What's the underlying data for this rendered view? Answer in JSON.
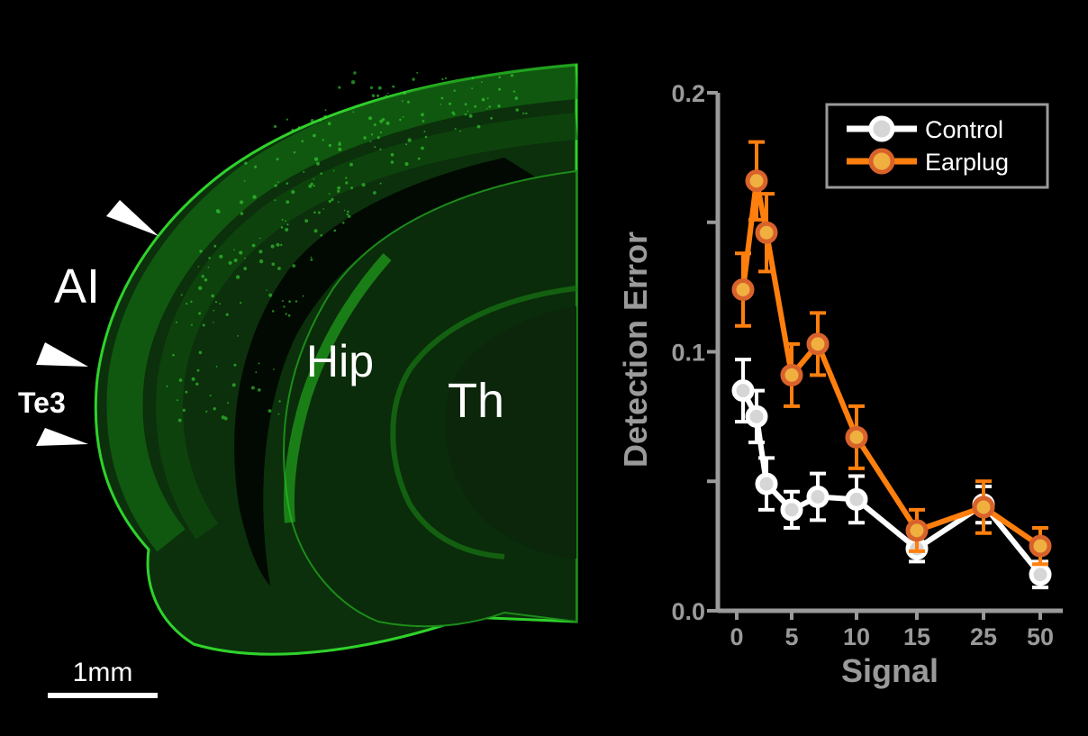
{
  "brain_image": {
    "labels": {
      "ai": "AI",
      "te3": "Te3",
      "hip": "Hip",
      "th": "Th"
    },
    "scale_bar_label": "1mm",
    "stain_color": "#22c41f",
    "label_color": "#ffffff"
  },
  "chart_data": {
    "type": "line",
    "xlabel": "Signal",
    "ylabel": "Detection Error",
    "x_tick_labels": [
      "0",
      "5",
      "10",
      "15",
      "25",
      "50"
    ],
    "y_tick_labels": [
      "0.0",
      "0.1",
      "0.2"
    ],
    "ylim": [
      0,
      0.2
    ],
    "grid": false,
    "legend_position": "top-right",
    "series": [
      {
        "name": "Control",
        "color": "#ffffff",
        "marker_fill": "#d6d6d6",
        "x": [
          1,
          2,
          3,
          5,
          7,
          10,
          15,
          25,
          50
        ],
        "values": [
          0.085,
          0.075,
          0.049,
          0.039,
          0.044,
          0.043,
          0.024,
          0.041,
          0.014
        ],
        "errors": [
          0.012,
          0.01,
          0.01,
          0.007,
          0.009,
          0.009,
          0.005,
          0.007,
          0.005
        ]
      },
      {
        "name": "Earplug",
        "color": "#ff7f0e",
        "marker_fill": "#f0b040",
        "marker_edge": "#d9622b",
        "x": [
          1,
          2,
          3,
          5,
          7,
          10,
          15,
          25,
          50
        ],
        "values": [
          0.124,
          0.166,
          0.146,
          0.091,
          0.103,
          0.067,
          0.031,
          0.04,
          0.025
        ],
        "errors": [
          0.014,
          0.015,
          0.015,
          0.012,
          0.012,
          0.012,
          0.008,
          0.01,
          0.007
        ]
      }
    ]
  }
}
